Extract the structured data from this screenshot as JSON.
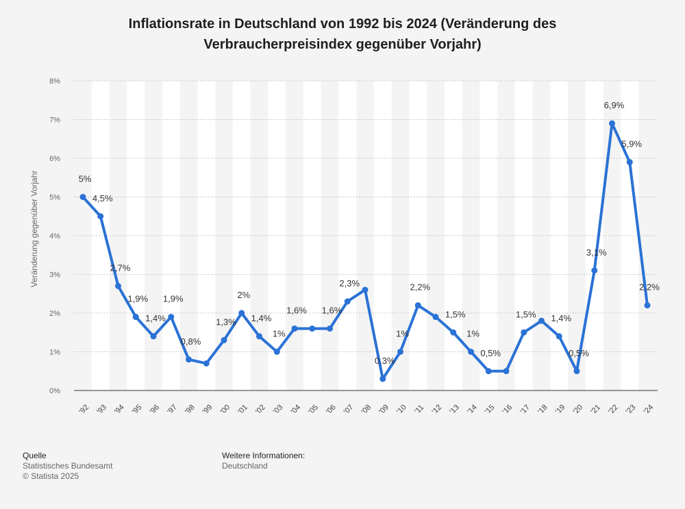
{
  "title": {
    "line1": "Inflationsrate in Deutschland von 1992 bis 2024 (Veränderung des",
    "line2": "Verbraucherpreisindex gegenüber Vorjahr)"
  },
  "footer": {
    "source_heading": "Quelle",
    "source_name": "Statistisches Bundesamt",
    "copyright": "© Statista 2025",
    "info_heading": "Weitere Informationen:",
    "info_text": "Deutschland"
  },
  "colors": {
    "line": "#2b72d6",
    "band": "#ffffff",
    "grid": "#b8b8b8",
    "background": "#f4f4f4"
  },
  "chart_data": {
    "type": "line",
    "ylabel": "Veränderung gegenüber Vorjahr",
    "xlabel": "",
    "ylim": [
      0,
      8
    ],
    "yticks": [
      "0%",
      "1%",
      "2%",
      "3%",
      "4%",
      "5%",
      "6%",
      "7%",
      "8%"
    ],
    "grid": true,
    "categories": [
      "'92",
      "'93",
      "'94",
      "'95",
      "'96",
      "'97",
      "'98",
      "'99",
      "'00",
      "'01",
      "'02",
      "'03",
      "'04",
      "'05",
      "'06",
      "'07",
      "'08",
      "'09",
      "'10",
      "'11",
      "'12",
      "'13",
      "'14",
      "'15",
      "'16",
      "'17",
      "'18",
      "'19",
      "'20",
      "'21",
      "'22",
      "'23",
      "'24"
    ],
    "values": [
      5,
      4.5,
      2.7,
      1.9,
      1.4,
      1.9,
      0.8,
      0.7,
      1.3,
      2,
      1.4,
      1,
      1.6,
      1.6,
      1.6,
      2.3,
      2.6,
      0.3,
      1,
      2.2,
      1.9,
      1.5,
      1,
      0.5,
      0.5,
      1.5,
      1.8,
      1.4,
      0.5,
      3.1,
      6.9,
      5.9,
      2.2
    ],
    "data_labels": [
      "5%",
      "4,5%",
      "2,7%",
      "1,9%",
      "1,4%",
      "1,9%",
      "0,8%",
      "",
      "1,3%",
      "2%",
      "1,4%",
      "1%",
      "1,6%",
      "",
      "1,6%",
      "2,3%",
      "",
      "0,3%",
      "1%",
      "2,2%",
      "",
      "1,5%",
      "1%",
      "0,5%",
      "",
      "1,5%",
      "",
      "1,4%",
      "0,5%",
      "3,1%",
      "6,9%",
      "5,9%",
      "2,2%"
    ]
  }
}
